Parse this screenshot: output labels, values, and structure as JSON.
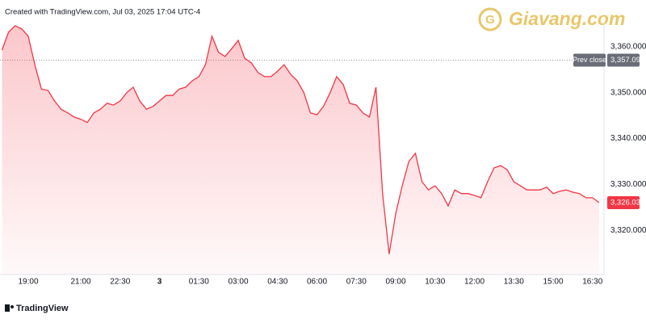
{
  "header": {
    "caption": "Created with TradingView.com, Jul 03, 2025 17:04 UTC-4",
    "watermark": "Giavang.com"
  },
  "footer": {
    "brand": "TradingView"
  },
  "chart_data": {
    "type": "area",
    "categories": [
      null,
      null,
      null,
      null,
      "19:00",
      null,
      null,
      null,
      null,
      null,
      null,
      null,
      "21:00",
      null,
      null,
      null,
      null,
      null,
      "22:30",
      null,
      null,
      null,
      null,
      null,
      "3",
      null,
      null,
      null,
      null,
      null,
      "01:30",
      null,
      null,
      null,
      null,
      null,
      "03:00",
      null,
      null,
      null,
      null,
      null,
      "04:30",
      null,
      null,
      null,
      null,
      null,
      "06:00",
      null,
      null,
      null,
      null,
      null,
      "07:30",
      null,
      null,
      null,
      null,
      null,
      "09:00",
      null,
      null,
      null,
      null,
      null,
      "10:30",
      null,
      null,
      null,
      null,
      null,
      "12:00",
      null,
      null,
      null,
      null,
      null,
      "13:30",
      null,
      null,
      null,
      null,
      null,
      "15:00",
      null,
      null,
      null,
      null,
      null,
      "16:30",
      null
    ],
    "series": [
      {
        "color": "#f23645",
        "values": [
          3359.3,
          3363.2,
          3364.6,
          3363.9,
          3362.3,
          3356.1,
          3350.8,
          3350.5,
          3348.2,
          3346.4,
          3345.6,
          3344.7,
          3344.2,
          3343.5,
          3345.6,
          3346.4,
          3347.7,
          3347.3,
          3348.2,
          3350.0,
          3351.2,
          3348.2,
          3346.4,
          3347.0,
          3348.2,
          3349.4,
          3349.4,
          3350.8,
          3351.2,
          3352.6,
          3353.5,
          3356.1,
          3362.3,
          3358.8,
          3357.9,
          3359.6,
          3361.4,
          3357.5,
          3356.5,
          3354.4,
          3353.5,
          3353.5,
          3354.7,
          3356.1,
          3354.0,
          3352.6,
          3350.0,
          3345.6,
          3345.2,
          3347.0,
          3350.0,
          3353.5,
          3351.8,
          3347.7,
          3347.3,
          3345.6,
          3344.7,
          3351.2,
          3328.0,
          3314.8,
          3323.6,
          3329.7,
          3335.0,
          3336.8,
          3330.6,
          3328.8,
          3329.7,
          3328.0,
          3325.3,
          3328.8,
          3328.0,
          3328.0,
          3327.6,
          3327.1,
          3330.6,
          3333.6,
          3334.1,
          3333.2,
          3330.6,
          3329.7,
          3328.8,
          3328.8,
          3328.8,
          3329.4,
          3328.0,
          3328.5,
          3328.8,
          3328.3,
          3328.0,
          3327.1,
          3327.1,
          3326.03
        ]
      }
    ],
    "ylim": [
      3310.35,
      3365.28
    ],
    "yticks": [
      {
        "value": 3320,
        "label": "3,320.000"
      },
      {
        "value": 3330,
        "label": "3,330.000"
      },
      {
        "value": 3340,
        "label": "3,340.000"
      },
      {
        "value": 3350,
        "label": "3,350.000"
      },
      {
        "value": 3360,
        "label": "3,360.000"
      }
    ],
    "prev_close": {
      "name": "Prev close",
      "value": 3357.09,
      "label": "3,357.090"
    },
    "last_price": {
      "value": 3326.03,
      "label": "3,326.030"
    },
    "grid": false
  }
}
